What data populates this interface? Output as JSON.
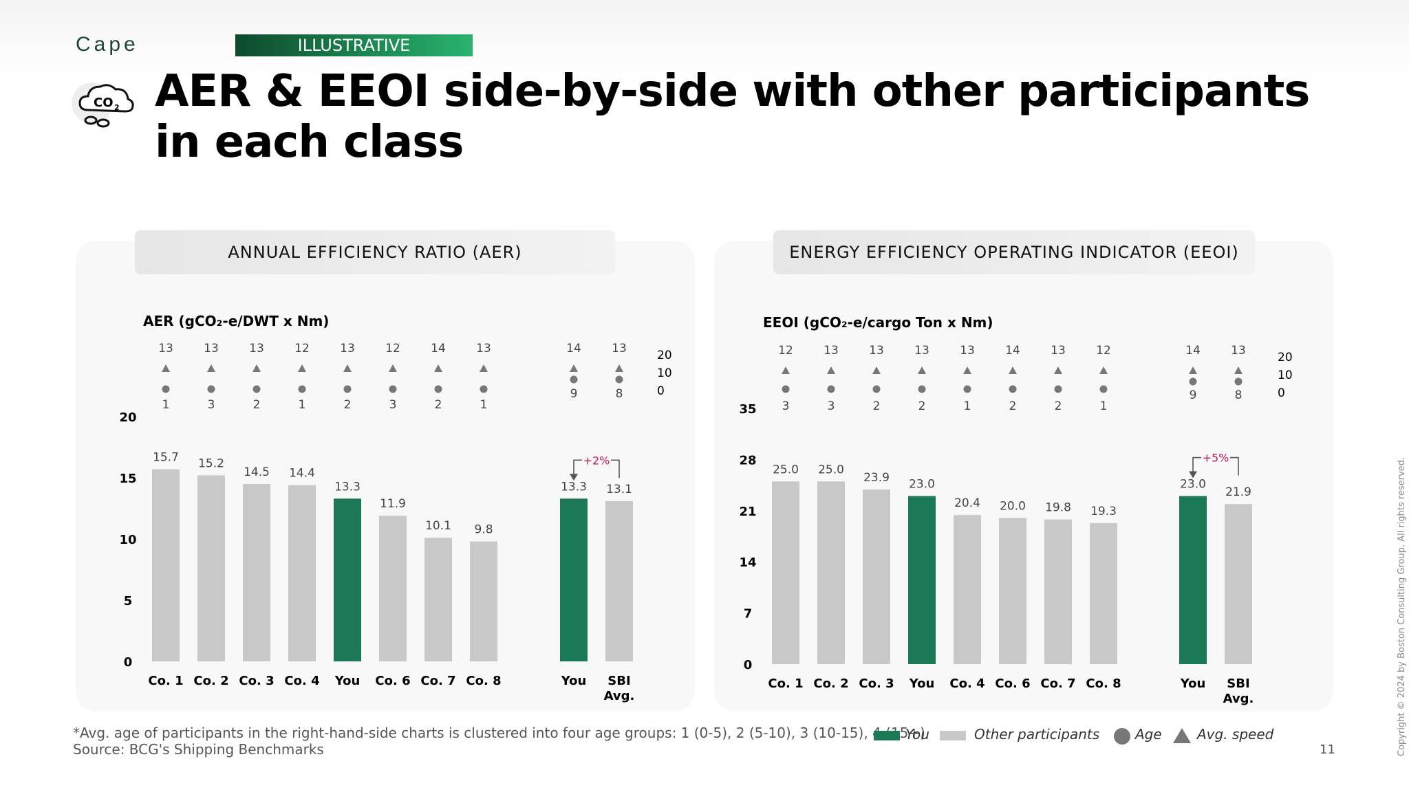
{
  "header": {
    "brand": "Cape",
    "tag": "ILLUSTRATIVE",
    "title": "AER & EEOI side-by-side with other participants in each class",
    "icon": "co2-cloud-icon"
  },
  "colors": {
    "you": "#1b7a55",
    "other": "#c8c8c8",
    "marker": "#777777",
    "delta": "#c2185b"
  },
  "chart_data": [
    {
      "type": "bar",
      "panel_title": "ANNUAL EFFICIENCY RATIO (AER)",
      "ylabel_html": "AER (gCO₂-e/DWT x Nm)",
      "ylim": [
        0,
        20
      ],
      "yticks": [
        0,
        5,
        10,
        15,
        20
      ],
      "categories": [
        "Co. 1",
        "Co. 2",
        "Co. 3",
        "Co. 4",
        "You",
        "Co. 6",
        "Co. 7",
        "Co. 8"
      ],
      "values": [
        15.7,
        15.2,
        14.5,
        14.4,
        13.3,
        11.9,
        10.1,
        9.8
      ],
      "speed": [
        13,
        13,
        13,
        12,
        13,
        12,
        14,
        13
      ],
      "age": [
        1,
        3,
        2,
        1,
        2,
        3,
        2,
        1
      ],
      "highlight": "You",
      "comparison": {
        "categories": [
          "You",
          "SBI Avg."
        ],
        "values": [
          13.3,
          13.1
        ],
        "speed": [
          14,
          13
        ],
        "age": [
          9,
          8
        ],
        "delta_label": "+2%",
        "secondary_ticks": [
          "20",
          "10",
          "0"
        ]
      }
    },
    {
      "type": "bar",
      "panel_title": "ENERGY EFFICIENCY OPERATING INDICATOR (EEOI)",
      "ylabel_html": "EEOI (gCO₂-e/cargo Ton x Nm)",
      "ylim": [
        0,
        35
      ],
      "yticks": [
        0,
        7,
        14,
        21,
        28,
        35
      ],
      "categories": [
        "Co. 1",
        "Co. 2",
        "Co. 3",
        "You",
        "Co. 4",
        "Co. 6",
        "Co. 7",
        "Co. 8"
      ],
      "values": [
        25.0,
        25.0,
        23.9,
        23.0,
        20.4,
        20.0,
        19.8,
        19.3
      ],
      "speed": [
        12,
        13,
        13,
        13,
        13,
        14,
        13,
        12
      ],
      "age": [
        3,
        3,
        2,
        2,
        1,
        2,
        2,
        1
      ],
      "highlight": "You",
      "comparison": {
        "categories": [
          "You",
          "SBI Avg."
        ],
        "values": [
          23.0,
          21.9
        ],
        "speed": [
          14,
          13
        ],
        "age": [
          9,
          8
        ],
        "delta_label": "+5%",
        "secondary_ticks": [
          "20",
          "10",
          "0"
        ]
      }
    }
  ],
  "footer": {
    "note": "*Avg. age of participants in the right-hand-side charts is clustered into four age groups: 1 (0-5), 2 (5-10), 3 (10-15), 4 (15+)",
    "source": "Source: BCG's Shipping Benchmarks",
    "legend": {
      "you": "You",
      "other": "Other participants",
      "age": "Age",
      "speed": "Avg. speed"
    },
    "page_number": "11",
    "copyright": "Copyright © 2024 by Boston Consulting Group. All rights reserved."
  }
}
